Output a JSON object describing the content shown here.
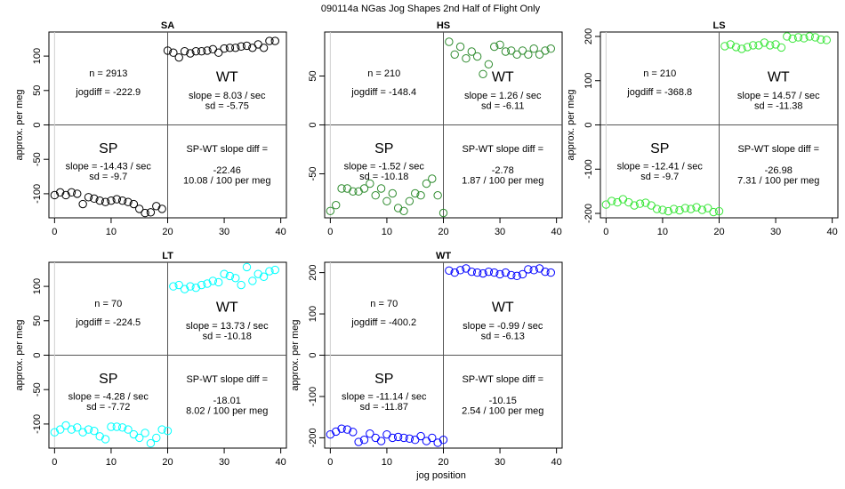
{
  "figure_title": "090114a   NGas Jog Shapes 2nd Half of Flight Only",
  "xlabel_bottom": "jog position",
  "chart_data": [
    {
      "type": "scatter",
      "title": "SA",
      "color": "#000000",
      "xlabel": "",
      "ylabel": "approx. per meg",
      "xlim": [
        -1,
        41
      ],
      "ylim": [
        -135,
        135
      ],
      "xticks": [
        0,
        10,
        20,
        30,
        40
      ],
      "yticks": [
        -100,
        -50,
        0,
        50,
        100
      ],
      "x": [
        0,
        1,
        2,
        3,
        4,
        5,
        6,
        7,
        8,
        9,
        10,
        11,
        12,
        13,
        14,
        15,
        16,
        17,
        18,
        19,
        20,
        21,
        22,
        23,
        24,
        25,
        26,
        27,
        28,
        29,
        30,
        31,
        32,
        33,
        34,
        35,
        36,
        37,
        38,
        39
      ],
      "y": [
        -102,
        -98,
        -102,
        -98,
        -100,
        -115,
        -105,
        -107,
        -110,
        -112,
        -110,
        -108,
        -110,
        -112,
        -115,
        -122,
        -128,
        -127,
        -118,
        -122,
        108,
        105,
        98,
        107,
        104,
        107,
        107,
        108,
        110,
        105,
        111,
        112,
        112,
        114,
        115,
        112,
        117,
        112,
        122,
        122
      ],
      "labels": {
        "n": "n = 2913",
        "jogdiff": "jogdiff = -222.9",
        "wt": "WT",
        "wt_slope": "slope = 8.03 / sec",
        "wt_sd": "sd = -5.75",
        "sp": "SP",
        "sp_slope": "slope = -14.43 / sec",
        "sp_sd": "sd = -9.7",
        "diff_label": "SP-WT slope diff =",
        "diff_value": "-22.46",
        "diff_permeg": "10.08 / 100 per meg"
      }
    },
    {
      "type": "scatter",
      "title": "HS",
      "color": "#2e8b2e",
      "xlabel": "",
      "ylabel": "",
      "xlim": [
        -1,
        41
      ],
      "ylim": [
        -95,
        95
      ],
      "xticks": [
        0,
        10,
        20,
        30,
        40
      ],
      "yticks": [
        -50,
        0,
        50
      ],
      "x": [
        0,
        1,
        2,
        3,
        4,
        5,
        6,
        7,
        8,
        9,
        10,
        11,
        12,
        13,
        14,
        15,
        16,
        17,
        18,
        19,
        20,
        21,
        22,
        23,
        24,
        25,
        26,
        27,
        28,
        29,
        30,
        31,
        32,
        33,
        34,
        35,
        36,
        37,
        38,
        39
      ],
      "y": [
        -88,
        -82,
        -65,
        -65,
        -68,
        -68,
        -65,
        -60,
        -72,
        -65,
        -78,
        -70,
        -85,
        -88,
        -78,
        -70,
        -72,
        -60,
        -55,
        -72,
        -90,
        85,
        72,
        80,
        68,
        75,
        70,
        52,
        62,
        80,
        82,
        75,
        76,
        72,
        76,
        72,
        78,
        72,
        76,
        78
      ],
      "labels": {
        "n": "n = 210",
        "jogdiff": "jogdiff = -148.4",
        "wt": "WT",
        "wt_slope": "slope = 1.26 / sec",
        "wt_sd": "sd = -6.11",
        "sp": "SP",
        "sp_slope": "slope = -1.52 / sec",
        "sp_sd": "sd = -10.18",
        "diff_label": "SP-WT slope diff =",
        "diff_value": "-2.78",
        "diff_permeg": "1.87 / 100 per meg"
      }
    },
    {
      "type": "scatter",
      "title": "LS",
      "color": "#39e639",
      "xlabel": "",
      "ylabel": "approx. per meg",
      "xlim": [
        -1,
        41
      ],
      "ylim": [
        -210,
        210
      ],
      "xticks": [
        0,
        10,
        20,
        30,
        40
      ],
      "yticks": [
        -200,
        -100,
        0,
        100,
        200
      ],
      "x": [
        0,
        1,
        2,
        3,
        4,
        5,
        6,
        7,
        8,
        9,
        10,
        11,
        12,
        13,
        14,
        15,
        16,
        17,
        18,
        19,
        20,
        21,
        22,
        23,
        24,
        25,
        26,
        27,
        28,
        29,
        30,
        31,
        32,
        33,
        34,
        35,
        36,
        37,
        38,
        39
      ],
      "y": [
        -180,
        -172,
        -175,
        -168,
        -175,
        -182,
        -178,
        -176,
        -182,
        -190,
        -192,
        -195,
        -190,
        -193,
        -188,
        -190,
        -186,
        -192,
        -188,
        -197,
        -195,
        178,
        182,
        176,
        172,
        176,
        180,
        180,
        186,
        180,
        182,
        175,
        200,
        195,
        198,
        196,
        200,
        198,
        193,
        192
      ],
      "labels": {
        "n": "n = 210",
        "jogdiff": "jogdiff = -368.8",
        "wt": "WT",
        "wt_slope": "slope = 14.57 / sec",
        "wt_sd": "sd = -11.38",
        "sp": "SP",
        "sp_slope": "slope = -12.41 / sec",
        "sp_sd": "sd = -9.7",
        "diff_label": "SP-WT slope diff =",
        "diff_value": "-26.98",
        "diff_permeg": "7.31 / 100 per meg"
      }
    },
    {
      "type": "scatter",
      "title": "LT",
      "color": "#00ffff",
      "xlabel": "",
      "ylabel": "approx. per meg",
      "xlim": [
        -1,
        41
      ],
      "ylim": [
        -135,
        135
      ],
      "xticks": [
        0,
        10,
        20,
        30,
        40
      ],
      "yticks": [
        -100,
        -50,
        0,
        50,
        100
      ],
      "x": [
        0,
        1,
        2,
        3,
        4,
        5,
        6,
        7,
        8,
        9,
        10,
        11,
        12,
        13,
        14,
        15,
        16,
        17,
        18,
        19,
        20,
        21,
        22,
        23,
        24,
        25,
        26,
        27,
        28,
        29,
        30,
        31,
        32,
        33,
        34,
        35,
        36,
        37,
        38,
        39
      ],
      "y": [
        -112,
        -108,
        -102,
        -108,
        -105,
        -112,
        -108,
        -110,
        -118,
        -122,
        -104,
        -104,
        -105,
        -108,
        -115,
        -120,
        -113,
        -128,
        -120,
        -108,
        -110,
        100,
        102,
        96,
        100,
        98,
        102,
        104,
        108,
        106,
        118,
        115,
        112,
        102,
        128,
        108,
        118,
        114,
        122,
        124
      ],
      "labels": {
        "n": "n = 70",
        "jogdiff": "jogdiff = -224.5",
        "wt": "WT",
        "wt_slope": "slope = 13.73 / sec",
        "wt_sd": "sd = -10.18",
        "sp": "SP",
        "sp_slope": "slope = -4.28 / sec",
        "sp_sd": "sd = -7.72",
        "diff_label": "SP-WT slope diff =",
        "diff_value": "-18.01",
        "diff_permeg": "8.02 / 100 per meg"
      }
    },
    {
      "type": "scatter",
      "title": "WT",
      "color": "#0000ff",
      "xlabel": "jog position",
      "ylabel": "approx. per meg",
      "xlim": [
        -1,
        41
      ],
      "ylim": [
        -225,
        225
      ],
      "xticks": [
        0,
        10,
        20,
        30,
        40
      ],
      "yticks": [
        -200,
        -100,
        0,
        100,
        200
      ],
      "x": [
        0,
        1,
        2,
        3,
        4,
        5,
        6,
        7,
        8,
        9,
        10,
        11,
        12,
        13,
        14,
        15,
        16,
        17,
        18,
        19,
        20,
        21,
        22,
        23,
        24,
        25,
        26,
        27,
        28,
        29,
        30,
        31,
        32,
        33,
        34,
        35,
        36,
        37,
        38,
        39
      ],
      "y": [
        -192,
        -185,
        -178,
        -180,
        -186,
        -210,
        -205,
        -190,
        -200,
        -208,
        -192,
        -200,
        -198,
        -200,
        -202,
        -205,
        -196,
        -208,
        -200,
        -212,
        -205,
        205,
        200,
        206,
        210,
        202,
        200,
        198,
        202,
        200,
        196,
        200,
        194,
        192,
        196,
        208,
        206,
        210,
        202,
        200
      ],
      "labels": {
        "n": "n = 70",
        "jogdiff": "jogdiff = -400.2",
        "wt": "WT",
        "wt_slope": "slope = -0.99 / sec",
        "wt_sd": "sd = -6.13",
        "sp": "SP",
        "sp_slope": "slope = -11.14 / sec",
        "sp_sd": "sd = -11.87",
        "diff_label": "SP-WT slope diff =",
        "diff_value": "-10.15",
        "diff_permeg": "2.54 / 100 per meg"
      }
    }
  ]
}
